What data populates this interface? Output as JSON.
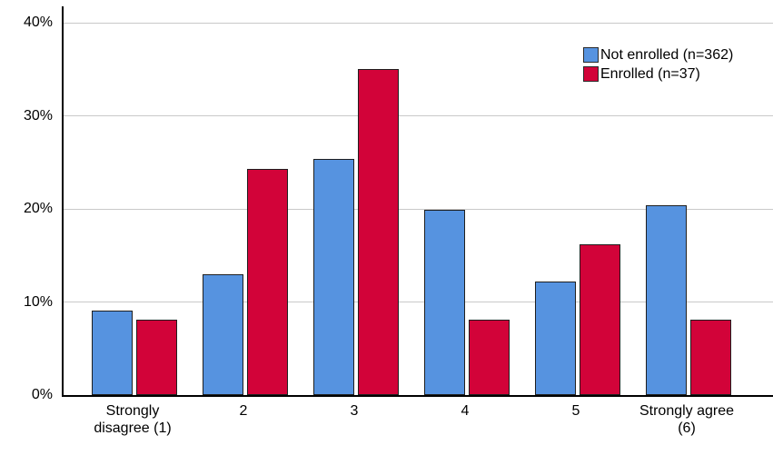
{
  "chart_data": {
    "type": "bar",
    "title": "",
    "xlabel": "",
    "ylabel": "",
    "categories": [
      "Strongly disagree (1)",
      "2",
      "3",
      "4",
      "5",
      "Strongly agree (6)"
    ],
    "series": [
      {
        "name": "Not enrolled (n=362)",
        "color": "#5693E0",
        "values": [
          9.1,
          13.0,
          25.4,
          19.9,
          12.2,
          20.4
        ]
      },
      {
        "name": "Enrolled (n=37)",
        "color": "#D20339",
        "values": [
          8.1,
          24.3,
          35.1,
          8.1,
          16.2,
          8.1
        ]
      }
    ],
    "y_ticks": [
      "0%",
      "10%",
      "20%",
      "30%",
      "40%"
    ],
    "y_tick_values": [
      0,
      10,
      20,
      30,
      40
    ],
    "ylim": [
      0,
      41.8
    ],
    "grid": true,
    "legend_position": "top-right",
    "bar_border_color": "#1f1f1f",
    "gridline_color": "#c9c9c9",
    "axis_color": "#000000"
  }
}
